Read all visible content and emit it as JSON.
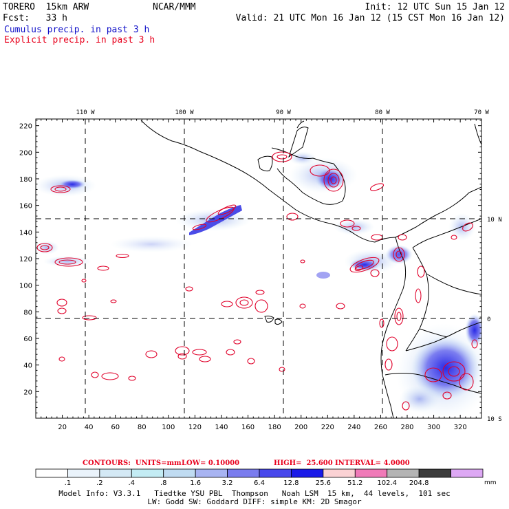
{
  "header": {
    "model": "TORERO  15km ARW",
    "org": "NCAR/MMM",
    "init": "Init: 12 UTC Sun 15 Jan 12",
    "fcst": "Fcst:   33 h",
    "valid": "Valid: 21 UTC Mon 16 Jan 12 (15 CST Mon 16 Jan 12)",
    "cumulus_label": "Cumulus precip. in past 3 h",
    "explicit_label": "Explicit precip. in past 3 h"
  },
  "colors": {
    "cumulus_text": "#1010c8",
    "explicit_text": "#e8001c",
    "contour": "#e0002a",
    "coast": "#000000"
  },
  "map": {
    "lon_labels": [
      "110 W",
      "100 W",
      "90 W",
      "80 W",
      "70 W"
    ],
    "lat_labels": [
      "10 N",
      "0",
      "10 S"
    ],
    "x_ticks": [
      "20",
      "40",
      "60",
      "80",
      "100",
      "120",
      "140",
      "160",
      "180",
      "200",
      "220",
      "240",
      "260",
      "280",
      "300",
      "320"
    ],
    "y_ticks": [
      "20",
      "40",
      "60",
      "80",
      "100",
      "120",
      "140",
      "160",
      "180",
      "200",
      "220"
    ]
  },
  "contour_info": {
    "contours": "CONTOURS:  UNITS=mm",
    "low": "LOW= 0.10000",
    "high": "HIGH=  25.600",
    "interval": "INTERVAL= 4.0000"
  },
  "colorbar": {
    "labels": [
      ".1",
      ".2",
      ".4",
      ".8",
      "1.6",
      "3.2",
      "6.4",
      "12.8",
      "25.6",
      "51.2",
      "102.4",
      "204.8"
    ],
    "unit": "mm",
    "colors": [
      "#ffffff",
      "#eaf3fb",
      "#d4e9f5",
      "#c3ecf4",
      "#c0dcf2",
      "#a8b4f2",
      "#7a7cee",
      "#4848ec",
      "#1a1ae8",
      "#fbd2d4",
      "#f07ab8",
      "#b4b4b4",
      "#3c3c3c",
      "#dda8f4"
    ]
  },
  "model_info": {
    "line1": "Model Info: V3.3.1   Tiedtke YSU PBL  Thompson   Noah LSM  15 km,  44 levels,  101 sec",
    "line2": "LW: Godd SW: Goddard DIFF: simple KM: 2D Smagor"
  }
}
